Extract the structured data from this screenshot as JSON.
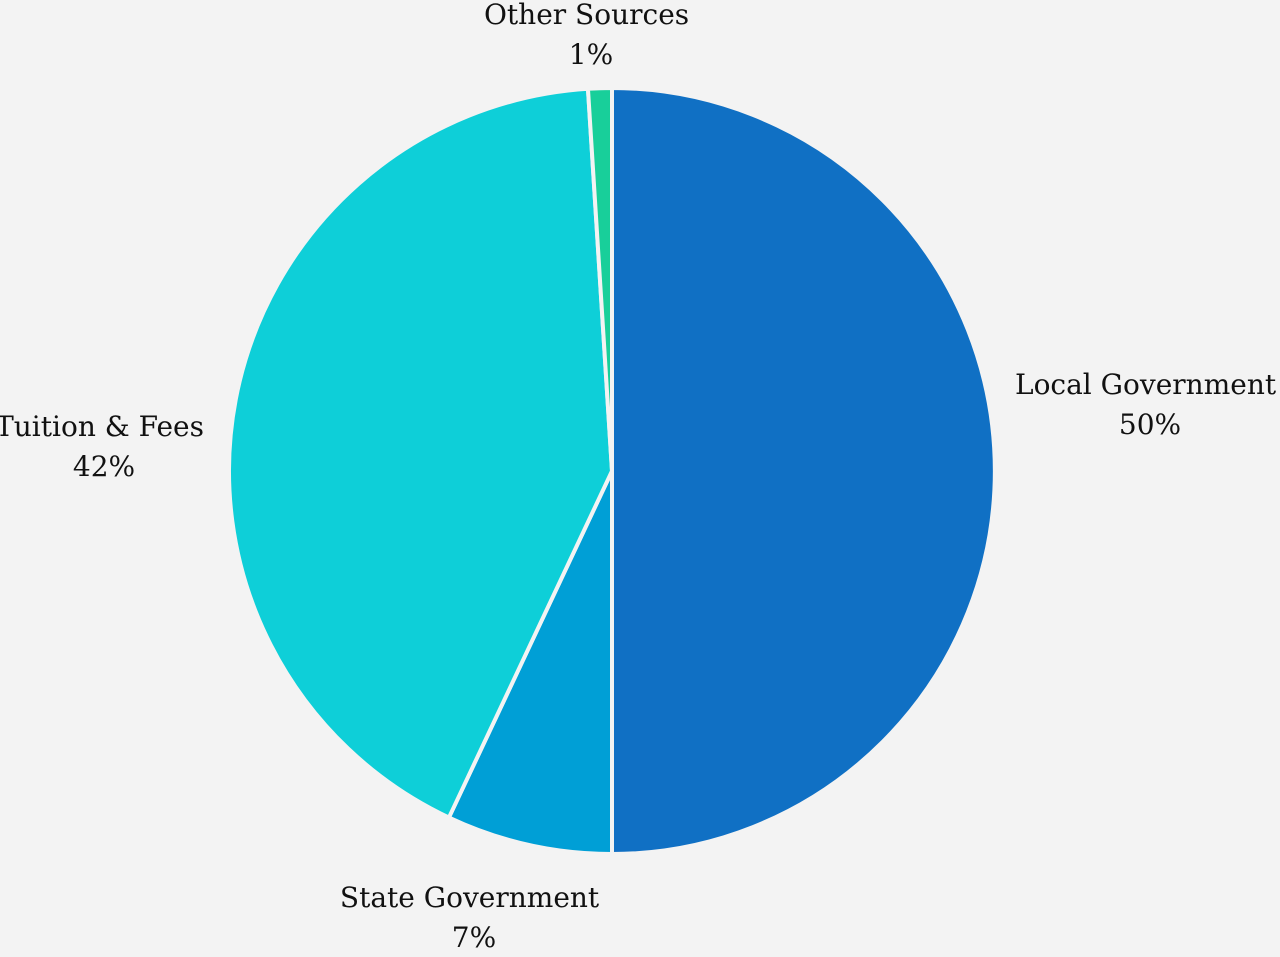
{
  "chart_data": {
    "type": "pie",
    "title": "",
    "slices": [
      {
        "name": "Local Government",
        "value": 50,
        "label": "50%",
        "color": "#1070c4"
      },
      {
        "name": "State Government",
        "value": 7,
        "label": "7%",
        "color": "#009fd6"
      },
      {
        "name": "Tuition & Fees",
        "value": 42,
        "label": "42%",
        "color": "#0ecfd8"
      },
      {
        "name": "Other Sources",
        "value": 1,
        "label": "1%",
        "color": "#18cf9a"
      }
    ],
    "legend": "none",
    "data_labels": "outside, category name and percentage"
  }
}
